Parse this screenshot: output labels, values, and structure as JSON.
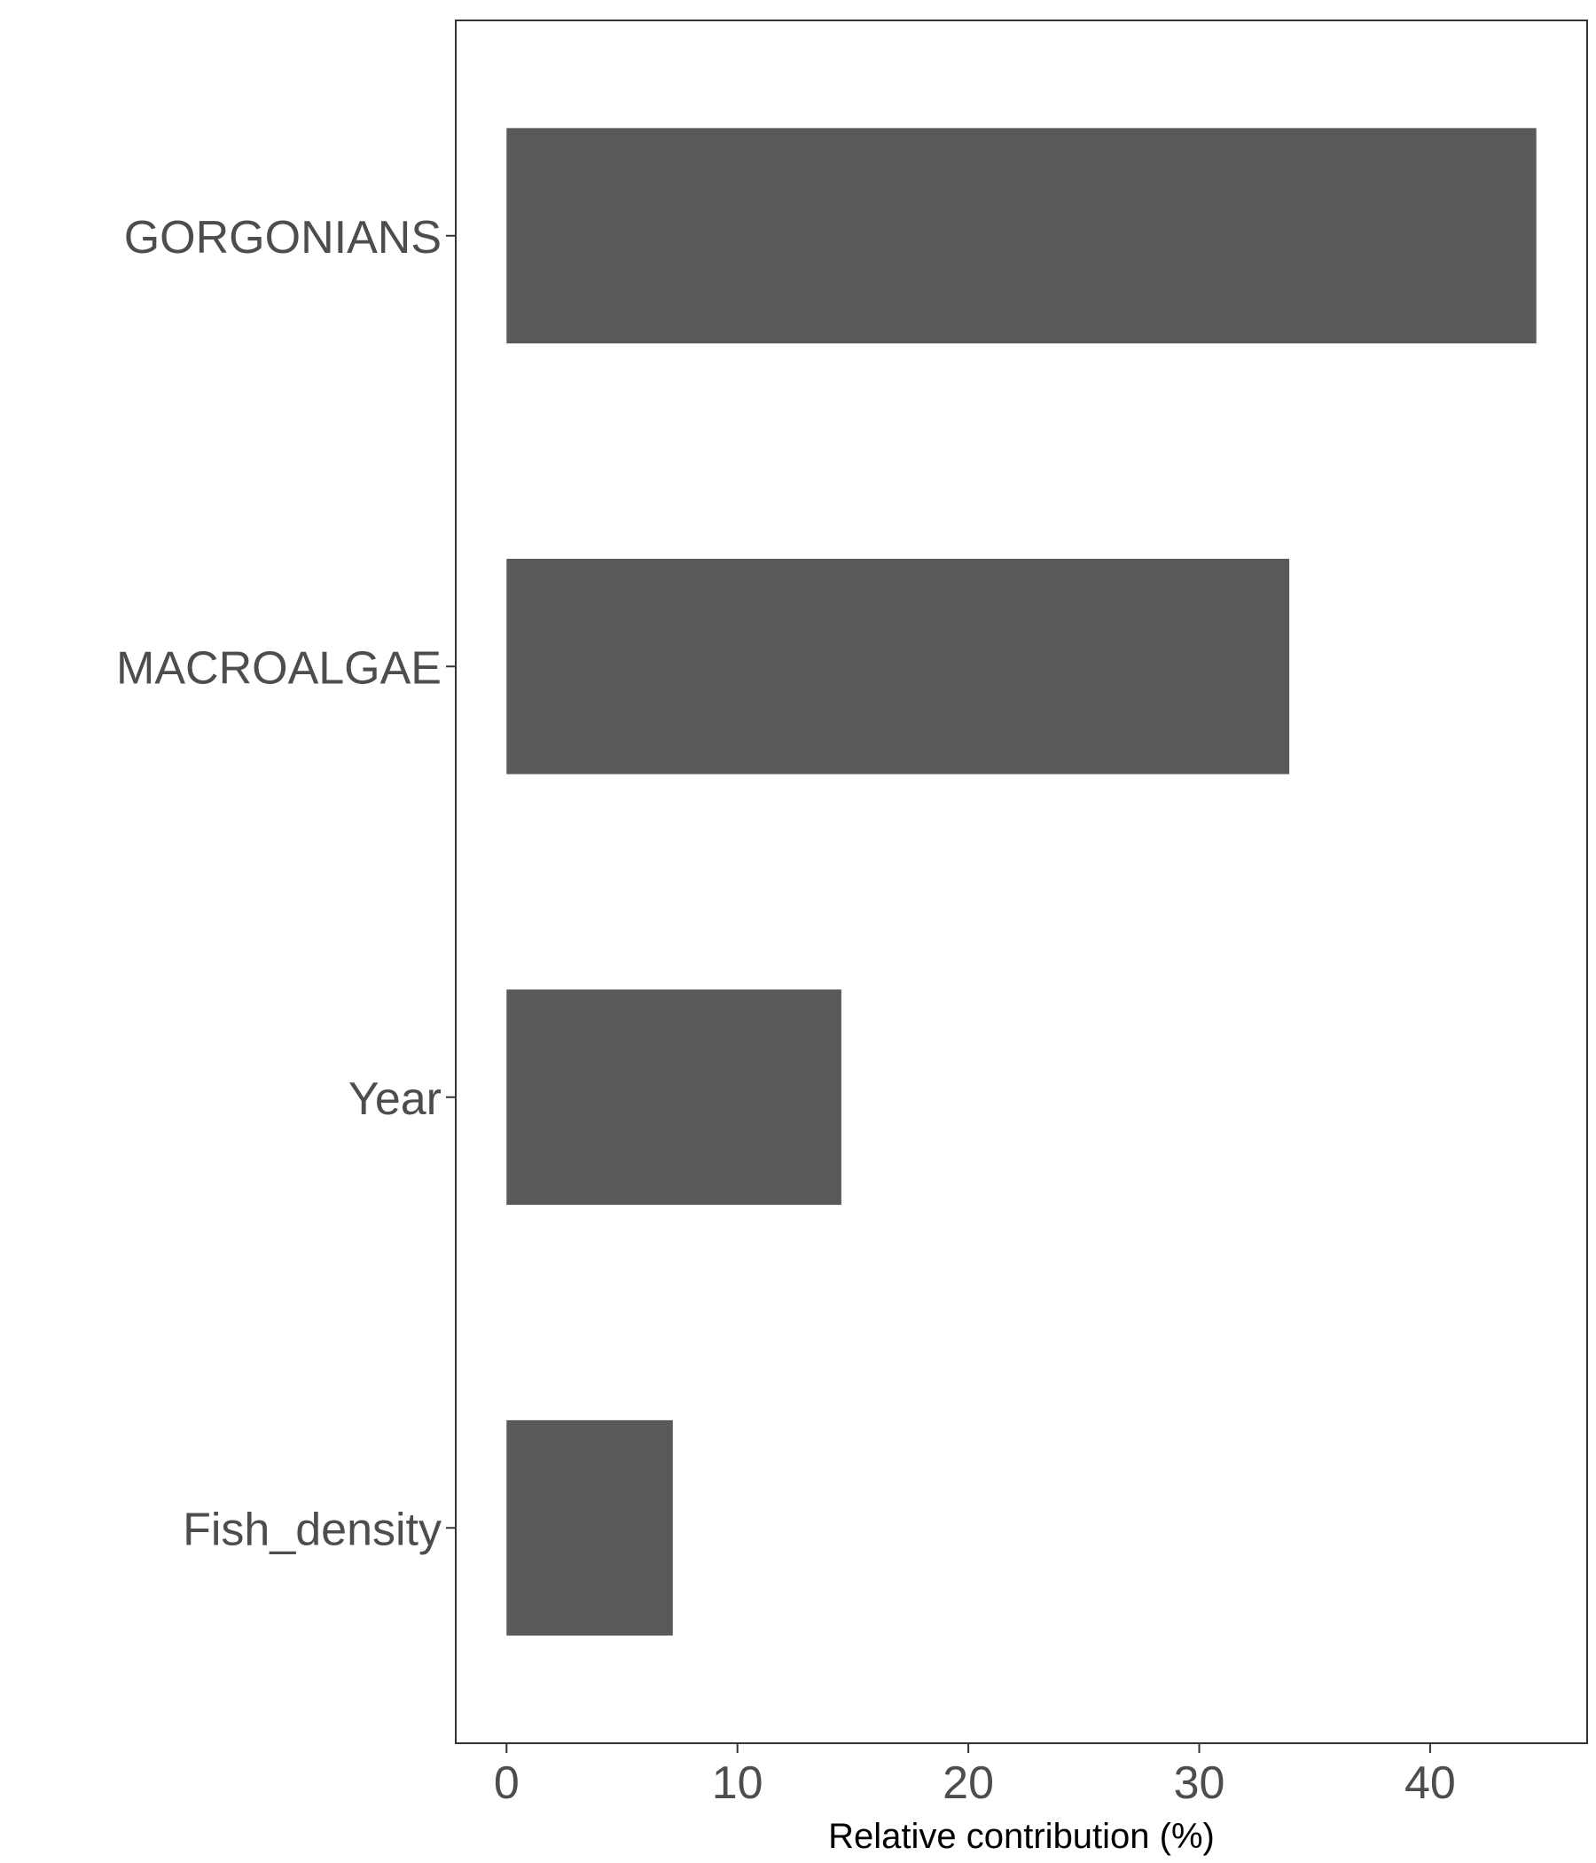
{
  "chart_data": {
    "type": "bar",
    "orientation": "horizontal",
    "categories": [
      "GORGONIANS",
      "MACROALGAE",
      "Year",
      "Fish_density"
    ],
    "values": [
      44.6,
      33.9,
      14.5,
      7.2
    ],
    "title": "",
    "xlabel": "Relative contribution (%)",
    "ylabel": "",
    "xlim": [
      -2.2,
      46.8
    ],
    "xticks": [
      0,
      10,
      20,
      30,
      40
    ],
    "grid": false,
    "legend": "none",
    "bar_color": "#595959"
  }
}
